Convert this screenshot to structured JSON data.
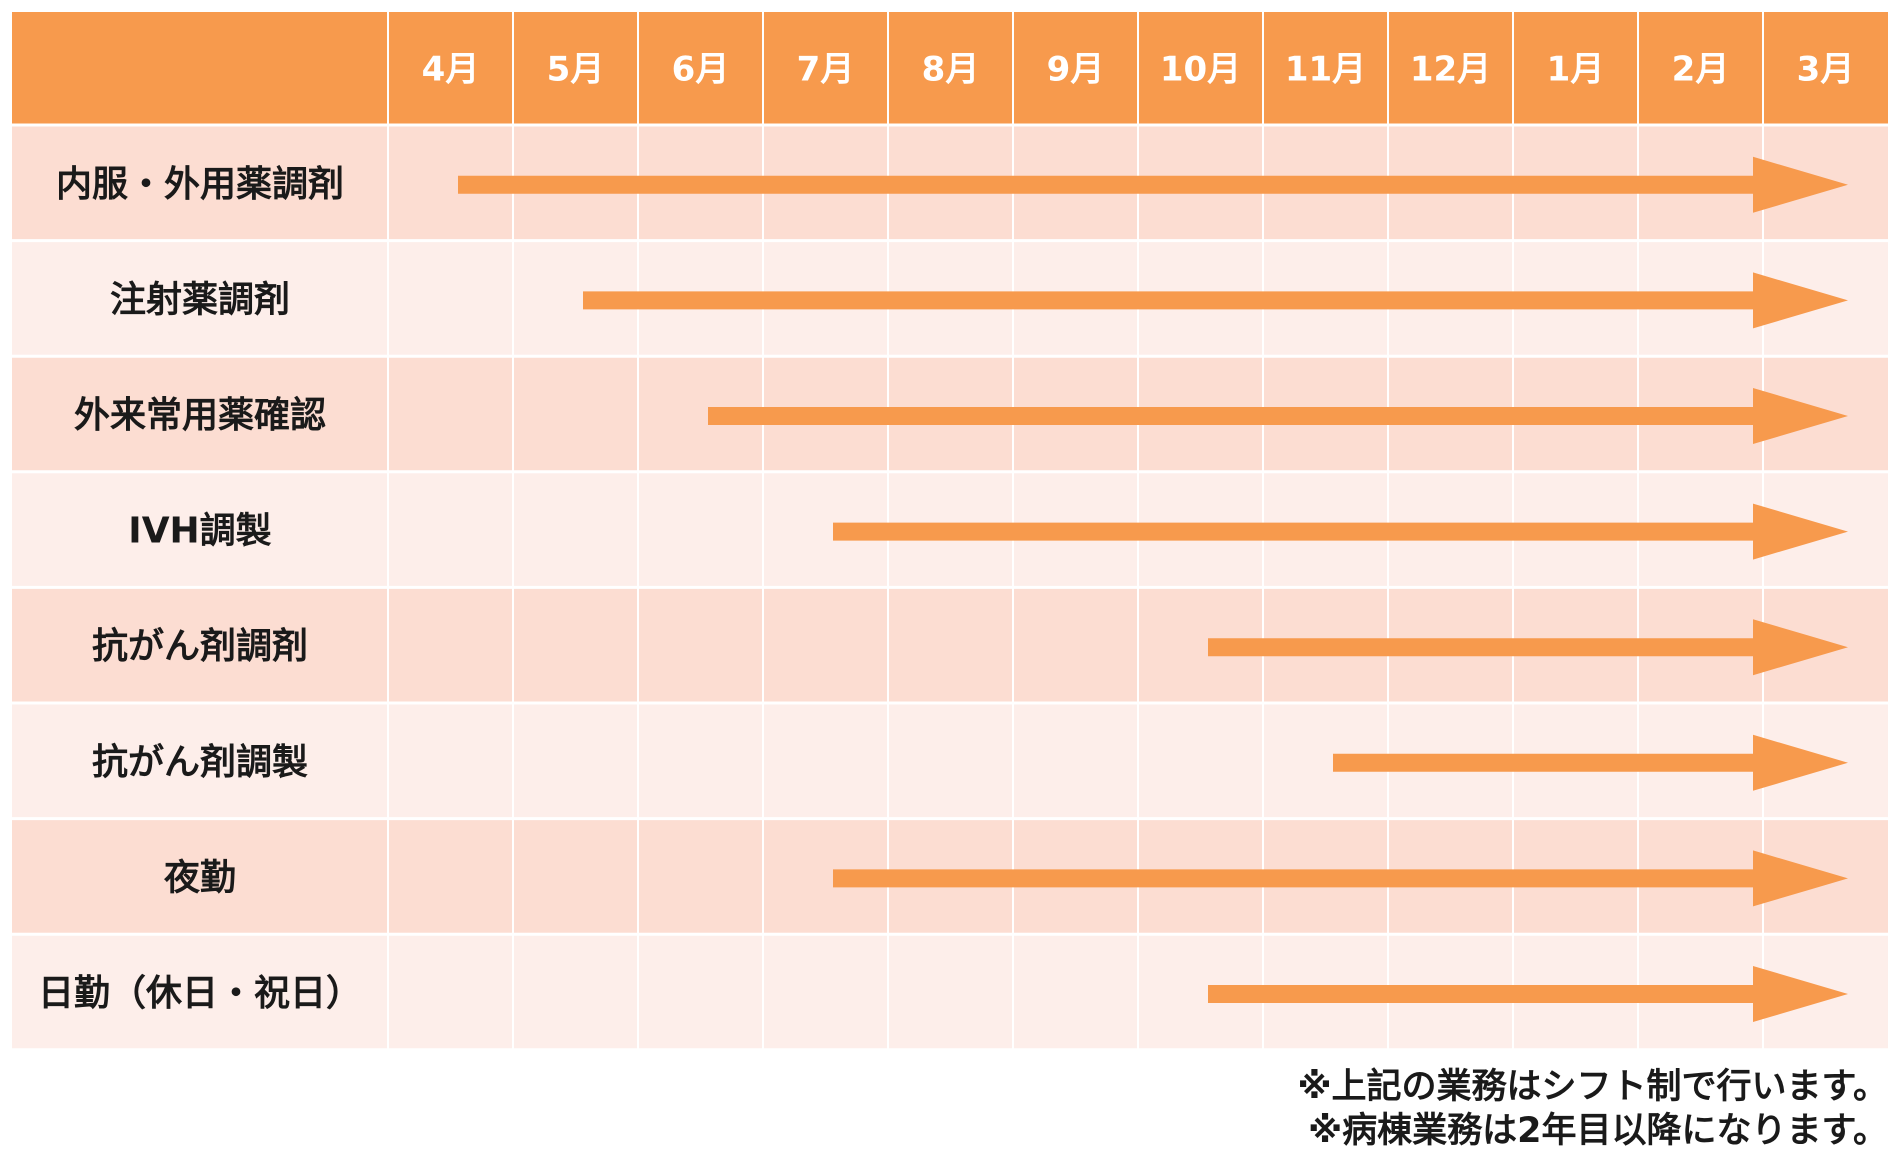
{
  "header": {
    "months": [
      "4月",
      "5月",
      "6月",
      "7月",
      "8月",
      "9月",
      "10月",
      "11月",
      "12月",
      "1月",
      "2月",
      "3月"
    ]
  },
  "tasks": [
    {
      "label": "内服・外用薬調剤",
      "start_month": "4月",
      "end_month": "3月"
    },
    {
      "label": "注射薬調剤",
      "start_month": "5月",
      "end_month": "3月"
    },
    {
      "label": "外来常用薬確認",
      "start_month": "6月",
      "end_month": "3月"
    },
    {
      "label": "IVH調製",
      "start_month": "7月",
      "end_month": "3月"
    },
    {
      "label": "抗がん剤調剤",
      "start_month": "10月",
      "end_month": "3月"
    },
    {
      "label": "抗がん剤調製",
      "start_month": "11月",
      "end_month": "3月"
    },
    {
      "label": "夜勤",
      "start_month": "7月",
      "end_month": "3月"
    },
    {
      "label": "日勤（休日・祝日）",
      "start_month": "10月",
      "end_month": "3月"
    }
  ],
  "notes": [
    "※上記の業務はシフト制で行います。",
    "※病棟業務は2年目以降になります。"
  ],
  "colors": {
    "header": "#F79A4D",
    "row_dark": "#FCDDD2",
    "row_light": "#FDEEEA",
    "arrow": "#F79A4D",
    "header_text": "#FFFFFF",
    "label_text": "#1A1A1A"
  }
}
